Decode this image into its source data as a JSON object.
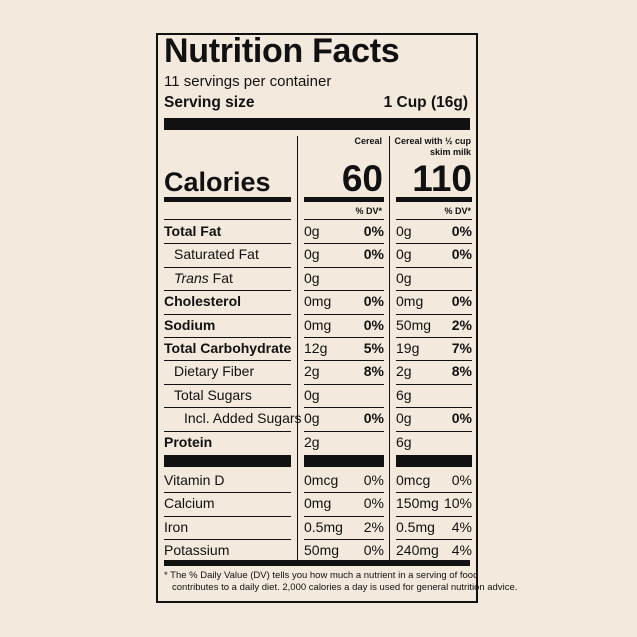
{
  "title": "Nutrition Facts",
  "servings_per_container": "11 servings per container",
  "serving_size_label": "Serving size",
  "serving_size_value": "1 Cup (16g)",
  "columns": {
    "col1_header": "Cereal",
    "col2_header_line1": "Cereal with ½ cup",
    "col2_header_line2": "skim milk"
  },
  "calories": {
    "label": "Calories",
    "col1": "60",
    "col2": "110"
  },
  "dv_header": "% DV*",
  "nutrients": [
    {
      "name": "Total Fat",
      "style": "bold",
      "c1": "0g",
      "c1dv": "0%",
      "c2": "0g",
      "c2dv": "0%"
    },
    {
      "name": "Saturated Fat",
      "style": "indent",
      "c1": "0g",
      "c1dv": "0%",
      "c2": "0g",
      "c2dv": "0%"
    },
    {
      "name_italic": "Trans",
      "name_rest": " Fat",
      "style": "indent",
      "c1": "0g",
      "c1dv": "",
      "c2": "0g",
      "c2dv": ""
    },
    {
      "name": "Cholesterol",
      "style": "bold",
      "c1": "0mg",
      "c1dv": "0%",
      "c2": "0mg",
      "c2dv": "0%"
    },
    {
      "name": "Sodium",
      "style": "bold",
      "c1": "0mg",
      "c1dv": "0%",
      "c2": "50mg",
      "c2dv": "2%"
    },
    {
      "name": "Total Carbohydrate",
      "style": "bold",
      "c1": "12g",
      "c1dv": "5%",
      "c2": "19g",
      "c2dv": "7%"
    },
    {
      "name": "Dietary Fiber",
      "style": "indent",
      "c1": "2g",
      "c1dv": "8%",
      "c2": "2g",
      "c2dv": "8%"
    },
    {
      "name": "Total Sugars",
      "style": "indent",
      "c1": "0g",
      "c1dv": "",
      "c2": "6g",
      "c2dv": ""
    },
    {
      "name": "Incl. Added Sugars",
      "style": "indent2",
      "c1": "0g",
      "c1dv": "0%",
      "c2": "0g",
      "c2dv": "0%"
    },
    {
      "name": "Protein",
      "style": "bold",
      "c1": "2g",
      "c1dv": "",
      "c2": "6g",
      "c2dv": ""
    }
  ],
  "vitamins": [
    {
      "name": "Vitamin D",
      "c1": "0mcg",
      "c1dv": "0%",
      "c2": "0mcg",
      "c2dv": "0%"
    },
    {
      "name": "Calcium",
      "c1": "0mg",
      "c1dv": "0%",
      "c2": "150mg",
      "c2dv": "10%"
    },
    {
      "name": "Iron",
      "c1": "0.5mg",
      "c1dv": "2%",
      "c2": "0.5mg",
      "c2dv": "4%"
    },
    {
      "name": "Potassium",
      "c1": "50mg",
      "c1dv": "0%",
      "c2": "240mg",
      "c2dv": "4%"
    }
  ],
  "footnote_line1": "* The % Daily Value (DV) tells you how much a nutrient in a serving of food",
  "footnote_line2": "contributes to a daily diet. 2,000 calories a day is used for general nutrition advice."
}
